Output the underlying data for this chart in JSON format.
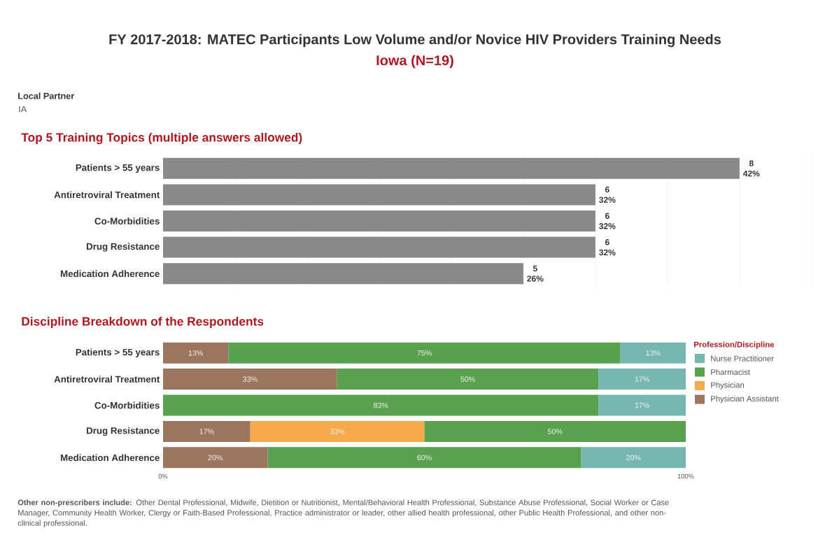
{
  "chart_data": [
    {
      "type": "bar",
      "orientation": "horizontal",
      "title": "FY 2017-2018: MATEC Participants Low Volume and/or Novice HIV Providers Training Needs",
      "subtitle": "Iowa (N=19)",
      "annotations": [
        "Local Partner",
        "IA",
        "Top 5 Training Topics (multiple answers allowed)"
      ],
      "categories": [
        "Patients > 55 years",
        "Antiretroviral Treatment",
        "Co-Morbidities",
        "Drug Resistance",
        "Medication Adherence"
      ],
      "values": [
        8,
        6,
        6,
        6,
        5
      ],
      "color": "#898989",
      "value_labels": [
        "8 42%",
        "6 32%",
        "6 32%",
        "6 32%",
        "5 26%"
      ],
      "xlim": [
        0,
        9.05
      ],
      "xticks": [
        {
          "value": 1,
          "label": null
        },
        {
          "value": 2,
          "label": null
        },
        {
          "value": 3,
          "label": null
        },
        {
          "value": 4,
          "label": null
        },
        {
          "value": 5,
          "label": null
        },
        {
          "value": 6,
          "label": null
        },
        {
          "value": 7,
          "label": null
        },
        {
          "value": 8,
          "label": null
        },
        {
          "value": 9,
          "label": null
        }
      ],
      "grid": "x",
      "tick_labels": "y"
    },
    {
      "type": "bar",
      "orientation": "horizontal",
      "stacked": true,
      "title": "Discipline Breakdown of the Respondents",
      "annotations": [
        "**Other non-prescribers include:** Other Dental Professional, Midwife, Dietition or Nutritionist, Mental/Behavioral Health Professional, Substance Abuse Professional, Social Worker or Case Manager, Community Health Worker, Clergy or Faith-Based Professional, Practice administrator or leader, other allied health professional, other Public Health Professional, and other non-clinical professional."
      ],
      "categories": [
        "Patients > 55 years",
        "Antiretroviral Treatment",
        "Co-Morbidities",
        "Drug Resistance",
        "Medication Adherence"
      ],
      "series": [
        {
          "name": "Physician Assistant",
          "color": "#9c755f",
          "values": [
            12.5,
            33.3,
            null,
            16.7,
            20
          ],
          "value_labels": [
            "13%",
            "33%",
            null,
            "17%",
            "20%"
          ]
        },
        {
          "name": "Physician",
          "color": "#f5aa4b",
          "values": [
            null,
            null,
            null,
            33.3,
            null
          ],
          "value_labels": [
            null,
            null,
            null,
            "33%",
            null
          ]
        },
        {
          "name": "Pharmacist",
          "color": "#59a14f",
          "values": [
            75,
            50,
            83.3,
            50,
            60
          ],
          "value_labels": [
            "75%",
            "50%",
            "83%",
            "50%",
            "60%"
          ]
        },
        {
          "name": "Nurse Practitioner",
          "color": "#76b7b2",
          "values": [
            12.5,
            16.7,
            16.7,
            null,
            20
          ],
          "value_labels": [
            "13%",
            "17%",
            "17%",
            null,
            "20%"
          ]
        }
      ],
      "xlim": [
        0,
        100
      ],
      "xticks": [
        {
          "value": 0,
          "label": "0%"
        },
        {
          "value": 100,
          "label": "100%"
        }
      ],
      "legend": "right",
      "legend_title": "Profession/Discipline"
    }
  ]
}
